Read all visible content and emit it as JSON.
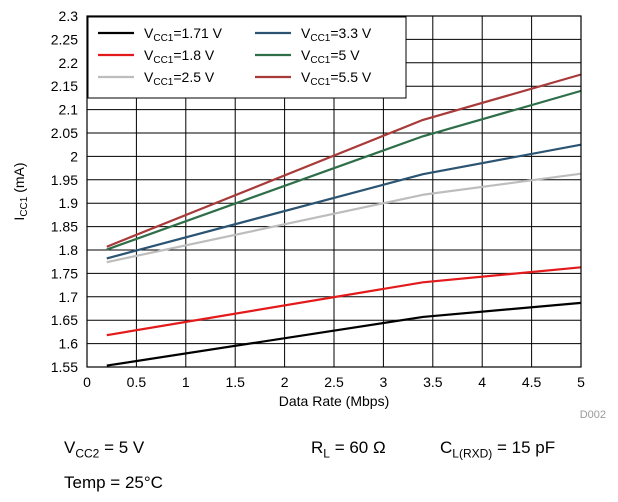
{
  "chart_data": {
    "type": "line",
    "title": "",
    "xlabel": "Data Rate (Mbps)",
    "ylabel_main": "I",
    "ylabel_sub": "CC1",
    "ylabel_unit": " (mA)",
    "xlim": [
      0,
      5
    ],
    "ylim": [
      1.55,
      2.3
    ],
    "x_ticks": [
      "0",
      "0.5",
      "1",
      "1.5",
      "2",
      "2.5",
      "3",
      "3.5",
      "4",
      "4.5",
      "5"
    ],
    "y_ticks": [
      "1.55",
      "1.6",
      "1.65",
      "1.7",
      "1.75",
      "1.8",
      "1.85",
      "1.9",
      "1.95",
      "2",
      "2.05",
      "2.1",
      "2.15",
      "2.2",
      "2.25",
      "2.3"
    ],
    "grid": true,
    "legend_position": "top-left",
    "figure_id": "D002",
    "series": [
      {
        "name_main": "V",
        "name_sub": "CC1",
        "name_rest": "=1.71 V",
        "color": "#000000",
        "x": [
          0.2,
          3.4,
          5
        ],
        "y": [
          1.553,
          1.657,
          1.687
        ]
      },
      {
        "name_main": "V",
        "name_sub": "CC1",
        "name_rest": "=1.8 V",
        "color": "#e31a1c",
        "x": [
          0.2,
          3.4,
          5
        ],
        "y": [
          1.618,
          1.731,
          1.763
        ]
      },
      {
        "name_main": "V",
        "name_sub": "CC1",
        "name_rest": "=2.5 V",
        "color": "#bdbdbd",
        "x": [
          0.2,
          3.4,
          5
        ],
        "y": [
          1.774,
          1.918,
          1.963
        ]
      },
      {
        "name_main": "V",
        "name_sub": "CC1",
        "name_rest": "=3.3 V",
        "color": "#2b5473",
        "x": [
          0.2,
          3.4,
          5
        ],
        "y": [
          1.782,
          1.962,
          2.025
        ]
      },
      {
        "name_main": "V",
        "name_sub": "CC1",
        "name_rest": "=5 V",
        "color": "#2e6f4a",
        "x": [
          0.2,
          3.4,
          5
        ],
        "y": [
          1.801,
          2.043,
          2.14
        ]
      },
      {
        "name_main": "V",
        "name_sub": "CC1",
        "name_rest": "=5.5 V",
        "color": "#a83a3a",
        "x": [
          0.2,
          3.4,
          5
        ],
        "y": [
          1.807,
          2.078,
          2.175
        ]
      }
    ]
  },
  "notes": {
    "vcc2": {
      "main": "V",
      "sub": "CC2",
      "rest": " = 5 V"
    },
    "rl": {
      "main": "R",
      "sub": "L",
      "rest": " = 60 Ω"
    },
    "cl": {
      "main": "C",
      "sub": "L(RXD)",
      "rest": " = 15 pF"
    },
    "temp": "Temp = 25°C"
  }
}
